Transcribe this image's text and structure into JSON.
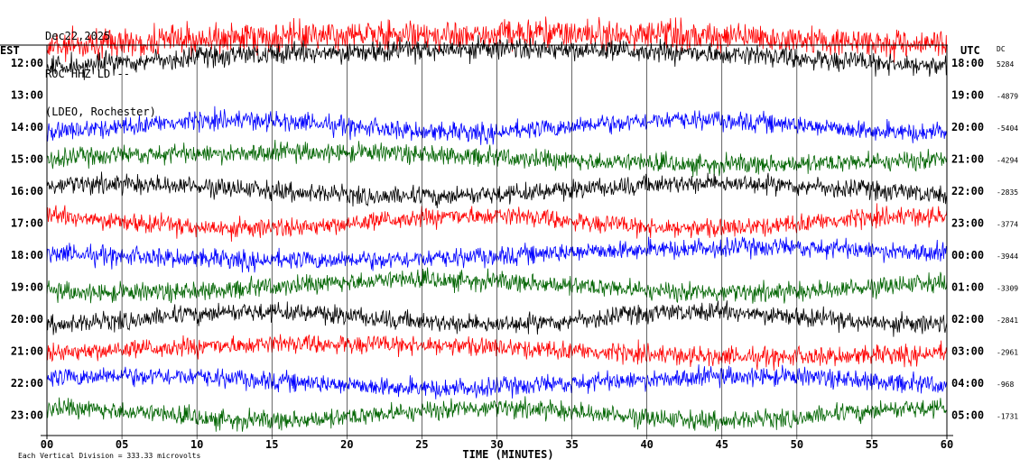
{
  "header": {
    "date": "Dec22,2025",
    "station": "ROC HHZ LD --",
    "location": "(LDEO, Rochester)"
  },
  "left_tz": "EST",
  "right_tz": "UTC",
  "dc_label": "DC",
  "scale_note": "Each Vertical Division =  333.33 microvolts",
  "chart_data": {
    "type": "line",
    "title": "Dec22,2025",
    "xlabel": "TIME (MINUTES)",
    "ylabel": "",
    "xlim": [
      0,
      60
    ],
    "x_ticks": [
      "00",
      "05",
      "10",
      "15",
      "20",
      "25",
      "30",
      "35",
      "40",
      "45",
      "50",
      "55",
      "60"
    ],
    "grid": true,
    "rows": [
      {
        "local": "12:00",
        "utc": "18:00",
        "dc": "5284",
        "color": "#ff0000"
      },
      {
        "local": "13:00",
        "utc": "19:00",
        "dc": "-4879",
        "color": "#000000"
      },
      {
        "local": "14:00",
        "utc": "20:00",
        "dc": "-5404",
        "color": "#0000ff"
      },
      {
        "local": "15:00",
        "utc": "21:00",
        "dc": "-4294",
        "color": "#006400"
      },
      {
        "local": "16:00",
        "utc": "22:00",
        "dc": "-2835",
        "color": "#000000"
      },
      {
        "local": "17:00",
        "utc": "23:00",
        "dc": "-3774",
        "color": "#ff0000"
      },
      {
        "local": "18:00",
        "utc": "00:00",
        "dc": "-3944",
        "color": "#0000ff"
      },
      {
        "local": "19:00",
        "utc": "01:00",
        "dc": "-3309",
        "color": "#006400"
      },
      {
        "local": "20:00",
        "utc": "02:00",
        "dc": "-2841",
        "color": "#000000"
      },
      {
        "local": "21:00",
        "utc": "03:00",
        "dc": "-2961",
        "color": "#ff0000"
      },
      {
        "local": "22:00",
        "utc": "04:00",
        "dc": "-968",
        "color": "#0000ff"
      },
      {
        "local": "23:00",
        "utc": "05:00",
        "dc": "-1731",
        "color": "#006400"
      }
    ]
  }
}
